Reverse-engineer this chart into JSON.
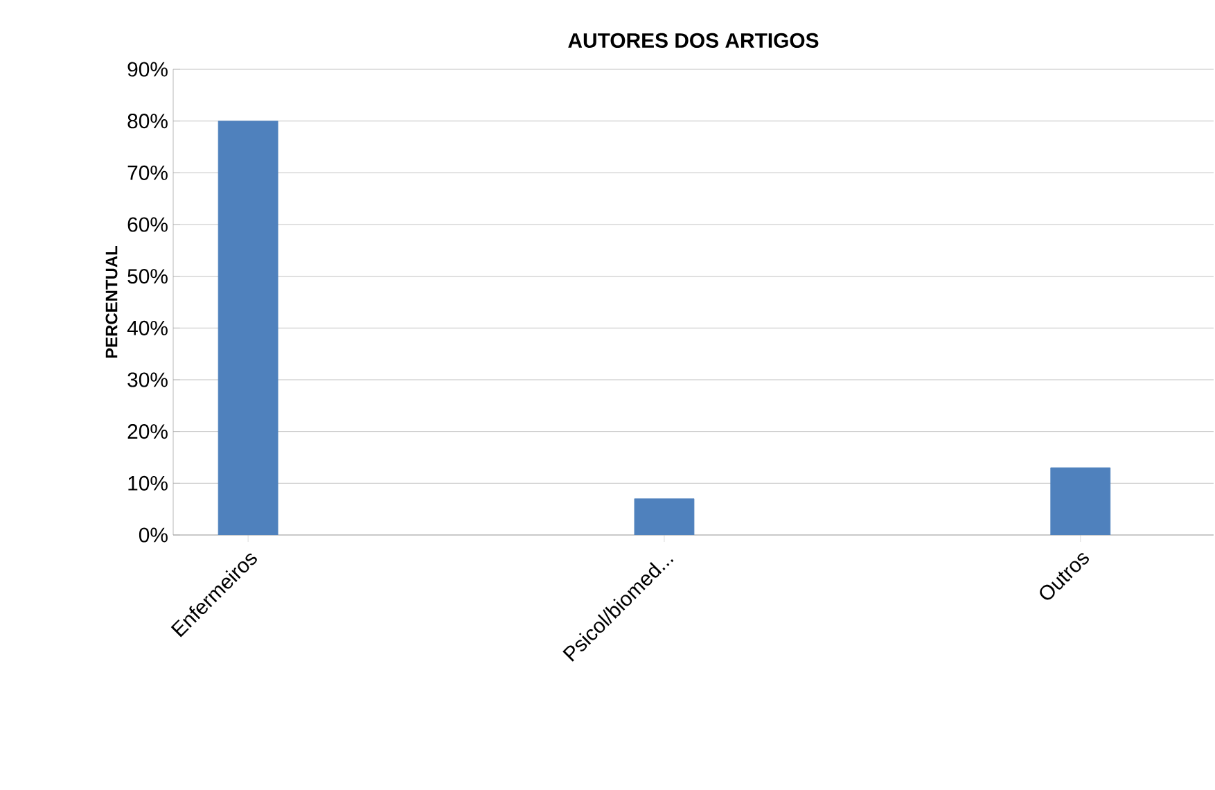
{
  "chart_data": {
    "type": "bar",
    "title": "AUTORES DOS ARTIGOS",
    "ylabel": "PERCENTUAL",
    "categories": [
      "Enfermeiros",
      "Psicol/biomed...",
      "Outros"
    ],
    "values": [
      80,
      7,
      13
    ],
    "color": "#4f81bd",
    "ylim": [
      0,
      90
    ],
    "yticks": [
      {
        "value": 0,
        "label": "0%"
      },
      {
        "value": 10,
        "label": "10%"
      },
      {
        "value": 20,
        "label": "20%"
      },
      {
        "value": 30,
        "label": "30%"
      },
      {
        "value": 40,
        "label": "40%"
      },
      {
        "value": 50,
        "label": "50%"
      },
      {
        "value": 60,
        "label": "60%"
      },
      {
        "value": 70,
        "label": "70%"
      },
      {
        "value": 80,
        "label": "80%"
      },
      {
        "value": 90,
        "label": "90%"
      }
    ],
    "grid": "y"
  }
}
